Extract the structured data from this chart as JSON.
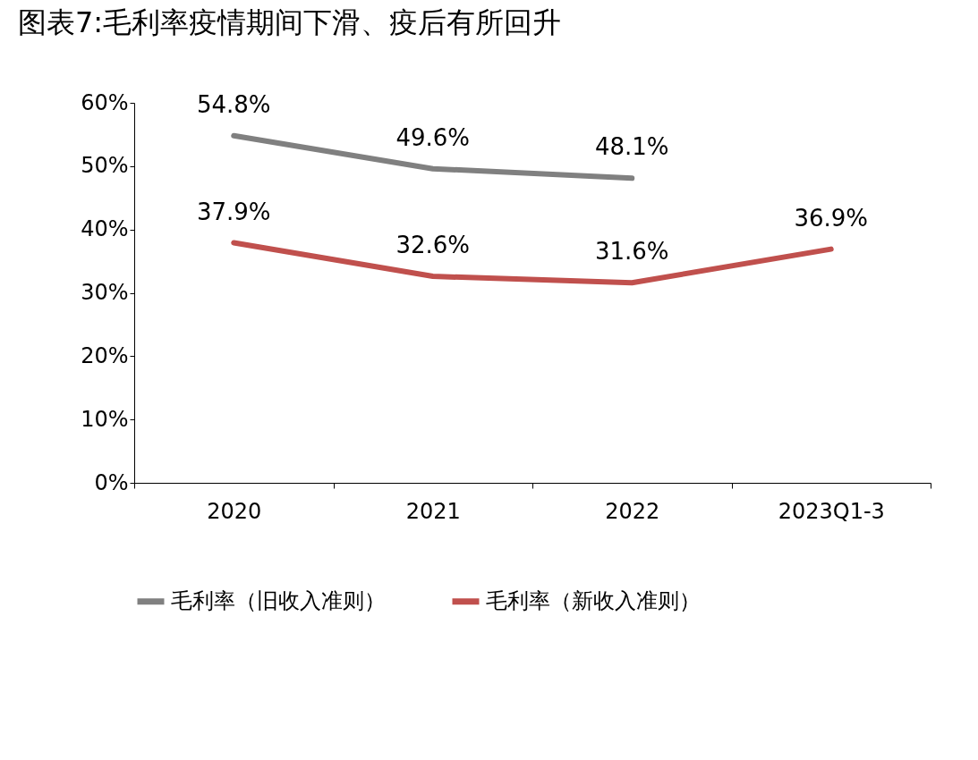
{
  "chart_data": {
    "type": "line",
    "title": "图表7:毛利率疫情期间下滑、疫后有所回升",
    "categories": [
      "2020",
      "2021",
      "2022",
      "2023Q1-3"
    ],
    "series": [
      {
        "name": "毛利率（旧收入准则）",
        "color": "#808080",
        "values": [
          54.8,
          49.6,
          48.1,
          null
        ],
        "value_labels": [
          "54.8%",
          "49.6%",
          "48.1%",
          null
        ]
      },
      {
        "name": "毛利率（新收入准则）",
        "color": "#c0504d",
        "values": [
          37.9,
          32.6,
          31.6,
          36.9
        ],
        "value_labels": [
          "37.9%",
          "32.6%",
          "31.6%",
          "36.9%"
        ]
      }
    ],
    "ylim": [
      0,
      60
    ],
    "yticks": [
      {
        "value": 0,
        "label": "0%"
      },
      {
        "value": 10,
        "label": "10%"
      },
      {
        "value": 20,
        "label": "20%"
      },
      {
        "value": 30,
        "label": "30%"
      },
      {
        "value": 40,
        "label": "40%"
      },
      {
        "value": 50,
        "label": "50%"
      },
      {
        "value": 60,
        "label": "60%"
      }
    ],
    "grid": false,
    "legend": "bottom",
    "marker": "none",
    "line_style": "solid"
  }
}
